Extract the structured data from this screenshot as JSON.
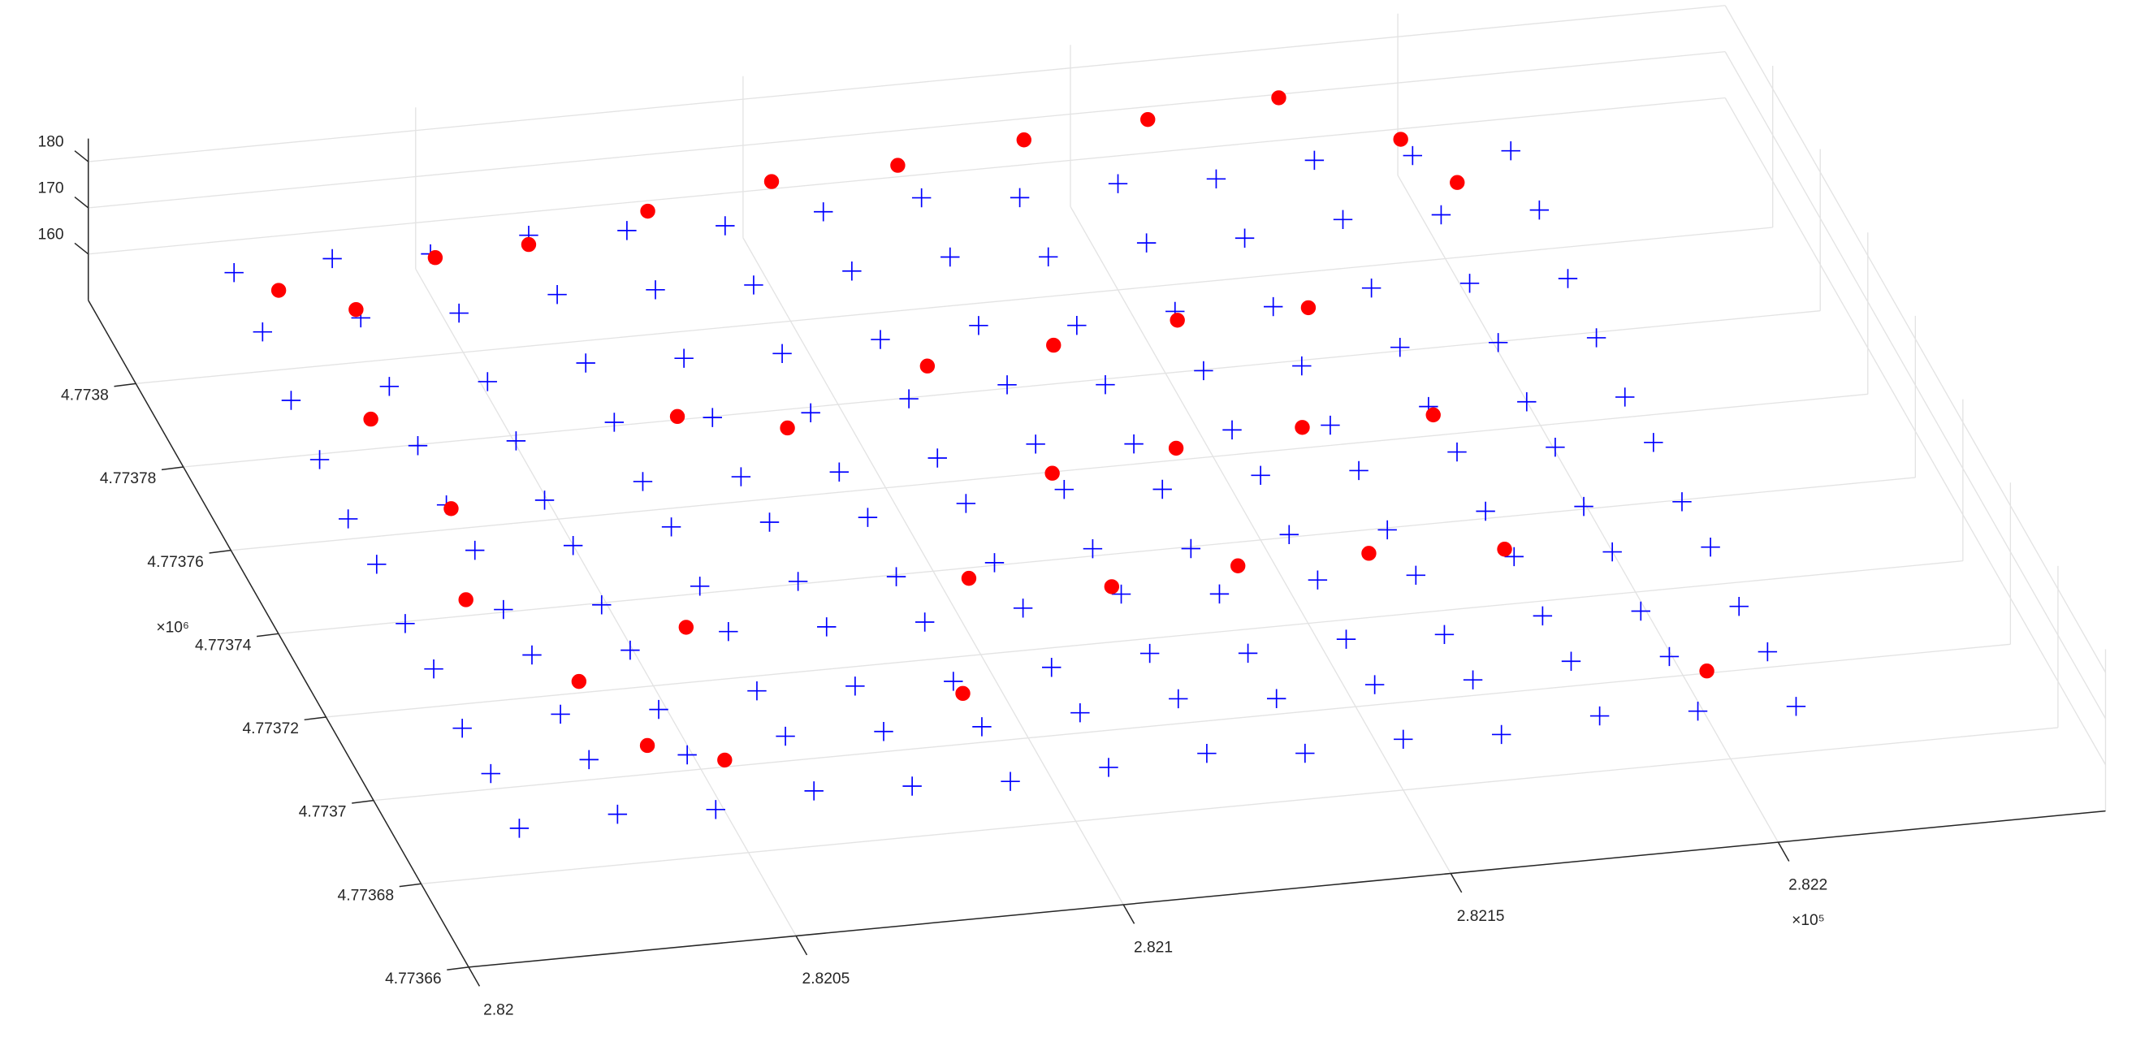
{
  "chart_data": {
    "type": "scatter3",
    "xlim": [
      282000,
      282250
    ],
    "ylim": [
      4773660,
      4773820
    ],
    "zlim": [
      150,
      185
    ],
    "xticks": [
      {
        "value": 282000,
        "label": "2.82"
      },
      {
        "value": 282050,
        "label": "2.8205"
      },
      {
        "value": 282100,
        "label": "2.821"
      },
      {
        "value": 282150,
        "label": "2.8215"
      },
      {
        "value": 282200,
        "label": "2.822"
      }
    ],
    "yticks": [
      {
        "value": 4773660,
        "label": "4.77366"
      },
      {
        "value": 4773680,
        "label": "4.77368"
      },
      {
        "value": 4773700,
        "label": "4.7737"
      },
      {
        "value": 4773720,
        "label": "4.77372"
      },
      {
        "value": 4773740,
        "label": "4.77374"
      },
      {
        "value": 4773760,
        "label": "4.77376"
      },
      {
        "value": 4773780,
        "label": "4.77378"
      },
      {
        "value": 4773800,
        "label": "4.7738"
      }
    ],
    "zticks": [
      160,
      170,
      180
    ],
    "x_exponent": "×10⁵",
    "y_exponent": "×10⁶",
    "grid": true,
    "series": [
      {
        "color": "#0000ff",
        "marker": "+",
        "x": [
          282015,
          282030,
          282045,
          282060,
          282075,
          282090,
          282105,
          282120,
          282135,
          282150,
          282165,
          282180,
          282195,
          282210,
          282015,
          282030,
          282045,
          282060,
          282075,
          282090,
          282105,
          282120,
          282135,
          282150,
          282165,
          282180,
          282195,
          282210,
          282015,
          282030,
          282045,
          282060,
          282075,
          282090,
          282105,
          282120,
          282135,
          282150,
          282165,
          282180,
          282195,
          282210,
          282015,
          282030,
          282045,
          282060,
          282075,
          282090,
          282105,
          282120,
          282135,
          282150,
          282165,
          282180,
          282195,
          282210,
          282015,
          282030,
          282045,
          282060,
          282075,
          282090,
          282105,
          282120,
          282135,
          282150,
          282165,
          282180,
          282195,
          282210,
          282015,
          282030,
          282045,
          282060,
          282075,
          282090,
          282105,
          282120,
          282135,
          282150,
          282165,
          282180,
          282195,
          282210,
          282015,
          282030,
          282045,
          282060,
          282075,
          282090,
          282105,
          282120,
          282135,
          282150,
          282165,
          282180,
          282195,
          282210,
          282015,
          282030,
          282045,
          282060,
          282075,
          282090,
          282105,
          282120,
          282135,
          282150,
          282165,
          282180,
          282195,
          282210,
          282015,
          282030,
          282045,
          282060,
          282075,
          282090,
          282105,
          282120,
          282135,
          282150,
          282165,
          282180,
          282195,
          282210,
          282015,
          282030,
          282045,
          282060,
          282075,
          282090,
          282105,
          282120,
          282135,
          282150,
          282165,
          282180,
          282195,
          282210,
          282015,
          282030,
          282045,
          282060,
          282075,
          282090,
          282105,
          282120,
          282135,
          282150,
          282165,
          282180,
          282195,
          282210
        ],
        "y": [
          4773680,
          4773680,
          4773680,
          4773680,
          4773680,
          4773680,
          4773680,
          4773680,
          4773680,
          4773680,
          4773680,
          4773680,
          4773680,
          4773680,
          4773692,
          4773692,
          4773692,
          4773692,
          4773692,
          4773692,
          4773692,
          4773692,
          4773692,
          4773692,
          4773692,
          4773692,
          4773692,
          4773692,
          4773704,
          4773704,
          4773704,
          4773704,
          4773704,
          4773704,
          4773704,
          4773704,
          4773704,
          4773704,
          4773704,
          4773704,
          4773704,
          4773704,
          4773716,
          4773716,
          4773716,
          4773716,
          4773716,
          4773716,
          4773716,
          4773716,
          4773716,
          4773716,
          4773716,
          4773716,
          4773716,
          4773716,
          4773728,
          4773728,
          4773728,
          4773728,
          4773728,
          4773728,
          4773728,
          4773728,
          4773728,
          4773728,
          4773728,
          4773728,
          4773728,
          4773728,
          4773740,
          4773740,
          4773740,
          4773740,
          4773740,
          4773740,
          4773740,
          4773740,
          4773740,
          4773740,
          4773740,
          4773740,
          4773740,
          4773740,
          4773752,
          4773752,
          4773752,
          4773752,
          4773752,
          4773752,
          4773752,
          4773752,
          4773752,
          4773752,
          4773752,
          4773752,
          4773752,
          4773752,
          4773764,
          4773764,
          4773764,
          4773764,
          4773764,
          4773764,
          4773764,
          4773764,
          4773764,
          4773764,
          4773764,
          4773764,
          4773764,
          4773764,
          4773776,
          4773776,
          4773776,
          4773776,
          4773776,
          4773776,
          4773776,
          4773776,
          4773776,
          4773776,
          4773776,
          4773776,
          4773776,
          4773776,
          4773788,
          4773788,
          4773788,
          4773788,
          4773788,
          4773788,
          4773788,
          4773788,
          4773788,
          4773788,
          4773788,
          4773788,
          4773788,
          4773788,
          4773800,
          4773800,
          4773800,
          4773800,
          4773800,
          4773800,
          4773800,
          4773800,
          4773800,
          4773800,
          4773800,
          4773800,
          4773800,
          4773800
        ],
        "z": [
          160,
          161,
          160,
          162,
          161,
          160,
          161,
          162,
          160,
          161,
          160,
          162,
          161,
          160,
          161,
          162,
          161,
          163,
          162,
          161,
          162,
          163,
          161,
          162,
          161,
          163,
          162,
          161,
          160,
          161,
          160,
          162,
          161,
          160,
          161,
          162,
          160,
          161,
          160,
          162,
          161,
          160,
          162,
          163,
          162,
          164,
          163,
          162,
          163,
          164,
          162,
          163,
          162,
          164,
          163,
          162,
          161,
          162,
          161,
          163,
          162,
          161,
          162,
          163,
          161,
          162,
          161,
          163,
          162,
          161,
          163,
          164,
          163,
          165,
          164,
          163,
          164,
          165,
          163,
          164,
          163,
          165,
          164,
          163,
          162,
          163,
          162,
          164,
          163,
          162,
          163,
          164,
          162,
          163,
          162,
          164,
          163,
          162,
          164,
          165,
          164,
          166,
          165,
          164,
          165,
          166,
          164,
          165,
          164,
          166,
          165,
          164,
          166,
          167,
          166,
          168,
          167,
          166,
          167,
          168,
          166,
          167,
          166,
          168,
          167,
          166,
          170,
          171,
          170,
          172,
          171,
          170,
          171,
          172,
          170,
          171,
          170,
          172,
          171,
          170,
          172,
          173,
          172,
          174,
          173,
          172,
          173,
          174,
          172,
          173,
          172,
          174,
          173,
          172
        ]
      },
      {
        "color": "#ff0000",
        "marker": "o",
        "x": [
          282020,
          282030,
          282045,
          282060,
          282080,
          282100,
          282120,
          282140,
          282160,
          282180,
          282195,
          282200,
          282025,
          282030,
          282025,
          282035,
          282040,
          282050,
          282055,
          282070,
          282085,
          282110,
          282130,
          282150,
          282170,
          282120,
          282140,
          282160,
          282180,
          282100,
          282120,
          282140,
          282160,
          282180,
          282200,
          282090
        ],
        "y": [
          4773795,
          4773790,
          4773798,
          4773800,
          4773805,
          4773808,
          4773810,
          4773812,
          4773815,
          4773815,
          4773805,
          4773795,
          4773770,
          4773750,
          4773730,
          4773710,
          4773695,
          4773690,
          4773720,
          4773765,
          4773760,
          4773770,
          4773772,
          4773775,
          4773775,
          4773745,
          4773748,
          4773750,
          4773750,
          4773725,
          4773720,
          4773722,
          4773722,
          4773720,
          4773690,
          4773700
        ],
        "z": [
          172,
          171,
          173,
          172,
          172,
          173,
          172,
          173,
          172,
          174,
          172,
          171,
          166,
          164,
          163,
          162,
          161,
          161,
          162,
          165,
          165,
          166,
          166,
          166,
          166,
          164,
          164,
          164,
          164,
          162,
          162,
          162,
          162,
          162,
          160,
          161
        ]
      }
    ]
  }
}
